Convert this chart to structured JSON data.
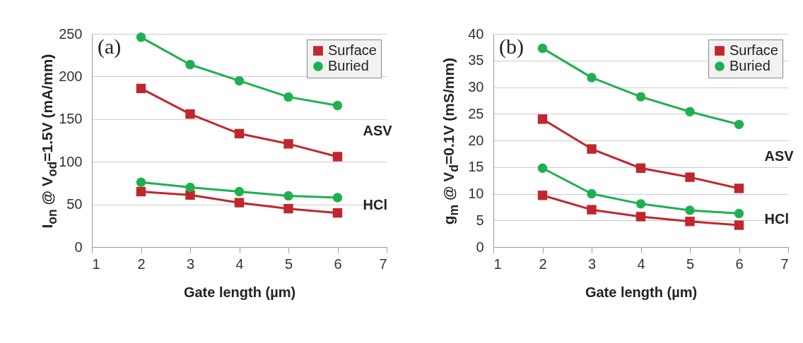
{
  "chart_data": [
    {
      "type": "line",
      "xlabel": "Gate length (µm)",
      "ylabel": "I$_{on}$ @ V$_{od}$=1.5V (mA/mm)",
      "x": [
        2,
        3,
        4,
        5,
        6
      ],
      "xlim": [
        1,
        7
      ],
      "xticks": [
        1,
        2,
        3,
        4,
        5,
        6,
        7
      ],
      "ylim": [
        0,
        250
      ],
      "yticks": [
        0,
        50,
        100,
        150,
        200,
        250
      ],
      "grid": "y",
      "legend": "top right",
      "series": [
        {
          "name": "Surface",
          "color": "#c0272d",
          "marker": "square",
          "values": [
            186,
            156,
            133,
            121,
            106
          ]
        },
        {
          "name": "Buried",
          "color": "#1eb050",
          "marker": "circle",
          "values": [
            246,
            214,
            195,
            176,
            166
          ]
        },
        {
          "color": "#c0272d",
          "marker": "square",
          "values": [
            65,
            61,
            52,
            45,
            40
          ]
        },
        {
          "color": "#1eb050",
          "marker": "circle",
          "values": [
            76,
            70,
            65,
            60,
            58
          ]
        }
      ],
      "annotations": [
        "(a)",
        "ASV",
        "HCl"
      ]
    },
    {
      "type": "line",
      "xlabel": "Gate length (µm)",
      "ylabel": "g$_{m}$ @ V$_{d}$=0.1V (mS/mm)",
      "x": [
        2,
        3,
        4,
        5,
        6
      ],
      "xlim": [
        1,
        7
      ],
      "xticks": [
        1,
        2,
        3,
        4,
        5,
        6,
        7
      ],
      "ylim": [
        0,
        40
      ],
      "yticks": [
        0,
        5,
        10,
        15,
        20,
        25,
        30,
        35,
        40
      ],
      "grid": "y",
      "legend": "top right",
      "series": [
        {
          "name": "Surface",
          "color": "#c0272d",
          "marker": "square",
          "values": [
            24,
            18.4,
            14.8,
            13.1,
            11
          ]
        },
        {
          "name": "Buried",
          "color": "#1eb050",
          "marker": "circle",
          "values": [
            37.3,
            31.8,
            28.2,
            25.4,
            23
          ]
        },
        {
          "color": "#c0272d",
          "marker": "square",
          "values": [
            9.7,
            7,
            5.7,
            4.8,
            4.1
          ]
        },
        {
          "color": "#1eb050",
          "marker": "circle",
          "values": [
            14.8,
            10,
            8.1,
            6.9,
            6.3
          ]
        }
      ],
      "annotations": [
        "(b)",
        "ASV",
        "HCl"
      ]
    }
  ]
}
